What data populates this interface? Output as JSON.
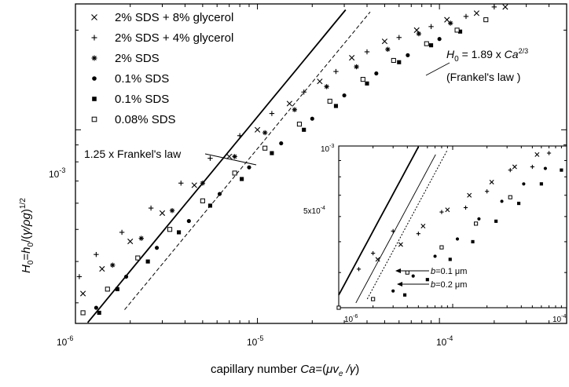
{
  "chart_data": [
    {
      "type": "scatter",
      "title": "",
      "xlabel": "capillary number Ca=(μv_e/γ)",
      "ylabel": "H_0=h_0/(γ/ρg)^1/2",
      "xscale": "log",
      "yscale": "log",
      "xlim": [
        1e-06,
        0.0005
      ],
      "ylim": [
        0.00026,
        0.0024
      ],
      "x_ticks": [
        {
          "value": 1e-06,
          "base": "10",
          "exp": "-6"
        },
        {
          "value": 1e-05,
          "base": "10",
          "exp": "-5"
        },
        {
          "value": 0.0001,
          "base": "10",
          "exp": "-4"
        }
      ],
      "y_ticks": [
        {
          "value": 0.001,
          "base": "10",
          "exp": "-3"
        }
      ],
      "legend_position": "top-left",
      "series": [
        {
          "name": "2% SDS + 8% glycerol",
          "marker": "x",
          "x": [
            1.1e-06,
            1.4e-06,
            2e-06,
            3e-06,
            4.5e-06,
            7e-06,
            1e-05,
            1.5e-05,
            2.2e-05,
            3.3e-05,
            5e-05,
            7.5e-05,
            0.00011,
            0.00016,
            0.00023
          ],
          "y": [
            0.00032,
            0.00038,
            0.00046,
            0.00056,
            0.00068,
            0.00083,
            0.001,
            0.0012,
            0.0014,
            0.00165,
            0.00185,
            0.002,
            0.00215,
            0.00225,
            0.00235
          ]
        },
        {
          "name": "2% SDS + 4% glycerol",
          "marker": "plus",
          "x": [
            1.05e-06,
            1.3e-06,
            1.8e-06,
            2.6e-06,
            3.8e-06,
            5.5e-06,
            8e-06,
            1.2e-05,
            1.8e-05,
            2.7e-05,
            4e-05,
            6e-05,
            9e-05,
            0.00014,
            0.0002
          ],
          "y": [
            0.00036,
            0.00042,
            0.00049,
            0.00058,
            0.00069,
            0.00082,
            0.00096,
            0.00112,
            0.0013,
            0.0015,
            0.00172,
            0.0019,
            0.00205,
            0.0022,
            0.00235
          ]
        },
        {
          "name": "2% SDS",
          "marker": "asterisk",
          "x": [
            1.6e-06,
            2.3e-06,
            3.4e-06,
            5e-06,
            7.5e-06,
            1.1e-05,
            1.6e-05,
            2.4e-05,
            3.5e-05,
            5.2e-05,
            7.7e-05,
            0.000115
          ],
          "y": [
            0.00039,
            0.00047,
            0.00057,
            0.00069,
            0.00083,
            0.00098,
            0.00115,
            0.00135,
            0.00155,
            0.00175,
            0.00195,
            0.0021
          ]
        },
        {
          "name": "0.1% SDS",
          "marker": "circle-filled",
          "x": [
            1.3e-06,
            1.9e-06,
            2.8e-06,
            4.2e-06,
            6.2e-06,
            9e-06,
            1.35e-05,
            2e-05,
            3e-05,
            4.5e-05,
            6.7e-05,
            0.0001
          ],
          "y": [
            0.00029,
            0.00036,
            0.00044,
            0.00053,
            0.00064,
            0.00077,
            0.00091,
            0.00108,
            0.00127,
            0.00148,
            0.00168,
            0.00188
          ]
        },
        {
          "name": "0.1% SDS",
          "marker": "square-filled",
          "x": [
            1.35e-06,
            1.7e-06,
            2.5e-06,
            3.7e-06,
            5.5e-06,
            8.2e-06,
            1.2e-05,
            1.8e-05,
            2.7e-05,
            4e-05,
            6e-05,
            9e-05,
            0.00013
          ],
          "y": [
            0.00028,
            0.00033,
            0.0004,
            0.00049,
            0.00059,
            0.00071,
            0.00085,
            0.001,
            0.00118,
            0.00138,
            0.0016,
            0.0018,
            0.00198
          ]
        },
        {
          "name": "0.08% SDS",
          "marker": "square-open",
          "x": [
            1.1e-06,
            1.5e-06,
            2.2e-06,
            3.3e-06,
            5e-06,
            7.5e-06,
            1.1e-05,
            1.7e-05,
            2.5e-05,
            3.8e-05,
            5.6e-05,
            8.5e-05,
            0.000125,
            0.00018
          ],
          "y": [
            0.00028,
            0.00033,
            0.00041,
            0.0005,
            0.00061,
            0.00074,
            0.00088,
            0.00104,
            0.00122,
            0.00142,
            0.00162,
            0.00182,
            0.002,
            0.00215
          ]
        }
      ],
      "lines": [
        {
          "label_bound": "annotations.frankel_125",
          "style": "solid",
          "coef": 2.36,
          "exponent": 0.6667
        },
        {
          "label_bound": "annotations.frankel_eq",
          "style": "dashed",
          "coef": 1.89,
          "exponent": 0.6667
        }
      ],
      "annotations": {
        "frankel_eq_lhs": "H",
        "frankel_eq_sub": "0",
        "frankel_eq_mid": " = 1.89 x ",
        "frankel_eq_ca": "Ca",
        "frankel_eq_sup": "2/3",
        "frankel_law": "(Frankel's law )",
        "frankel_125": "1.25 x Frankel's law"
      }
    },
    {
      "type": "scatter",
      "title": "",
      "xscale": "log",
      "yscale": "log",
      "xlim": [
        1e-06,
        0.0001
      ],
      "ylim": [
        0.00031,
        0.001
      ],
      "x_ticks": [
        {
          "value": 1e-06,
          "base": "10",
          "exp": "-6"
        },
        {
          "value": 0.0001,
          "base": "10",
          "exp": "-4"
        }
      ],
      "y_ticks": [
        {
          "value": 0.001,
          "base": "10",
          "exp": "-3"
        },
        {
          "value": 0.0005,
          "base": "5x10",
          "exp": "-4"
        }
      ],
      "series": [
        {
          "marker": "plus",
          "x": [
            1.5e-06,
            2e-06,
            3e-06,
            5e-06,
            8e-06,
            1.3e-05,
            2e-05,
            3.2e-05,
            5e-05,
            7e-05
          ],
          "y": [
            0.00041,
            0.00046,
            0.00054,
            0.00053,
            0.00062,
            0.00064,
            0.00072,
            0.00084,
            0.00086,
            0.00095
          ]
        },
        {
          "marker": "x",
          "x": [
            2.2e-06,
            3.5e-06,
            5.5e-06,
            9e-06,
            1.4e-05,
            2.2e-05,
            3.5e-05,
            5.5e-05
          ],
          "y": [
            0.00044,
            0.00049,
            0.00056,
            0.00063,
            0.0007,
            0.00077,
            0.00086,
            0.00094
          ]
        },
        {
          "marker": "circle-filled",
          "x": [
            3e-06,
            4.5e-06,
            7e-06,
            1.1e-05,
            1.7e-05,
            2.7e-05,
            4.2e-05,
            6.5e-05
          ],
          "y": [
            0.00035,
            0.00039,
            0.00045,
            0.00051,
            0.00059,
            0.00067,
            0.00076,
            0.00085
          ]
        },
        {
          "marker": "square-filled",
          "x": [
            3.8e-06,
            6e-06,
            9.5e-06,
            1.5e-05,
            2.4e-05,
            3.8e-05,
            6e-05,
            9e-05
          ],
          "y": [
            0.00034,
            0.00038,
            0.00044,
            0.0005,
            0.00058,
            0.00066,
            0.00076,
            0.00084
          ]
        },
        {
          "marker": "square-open",
          "x": [
            1e-06,
            2e-06,
            4e-06,
            8e-06,
            1.6e-05,
            3.2e-05
          ],
          "y": [
            0.00031,
            0.00033,
            0.0004,
            0.00048,
            0.00057,
            0.00069
          ]
        }
      ],
      "lines": [
        {
          "style": "solid",
          "coef": 3.4,
          "exponent": 0.6667
        },
        {
          "style": "solid-thin",
          "coef": 2.55,
          "exponent": 0.6667
        },
        {
          "style": "dotted",
          "coef": 2.25,
          "exponent": 0.6667
        }
      ],
      "annotations": {
        "b01_var": "b",
        "b01_val": "=0.1 μm",
        "b02_var": "b",
        "b02_val": "=0.2 μm"
      }
    }
  ]
}
